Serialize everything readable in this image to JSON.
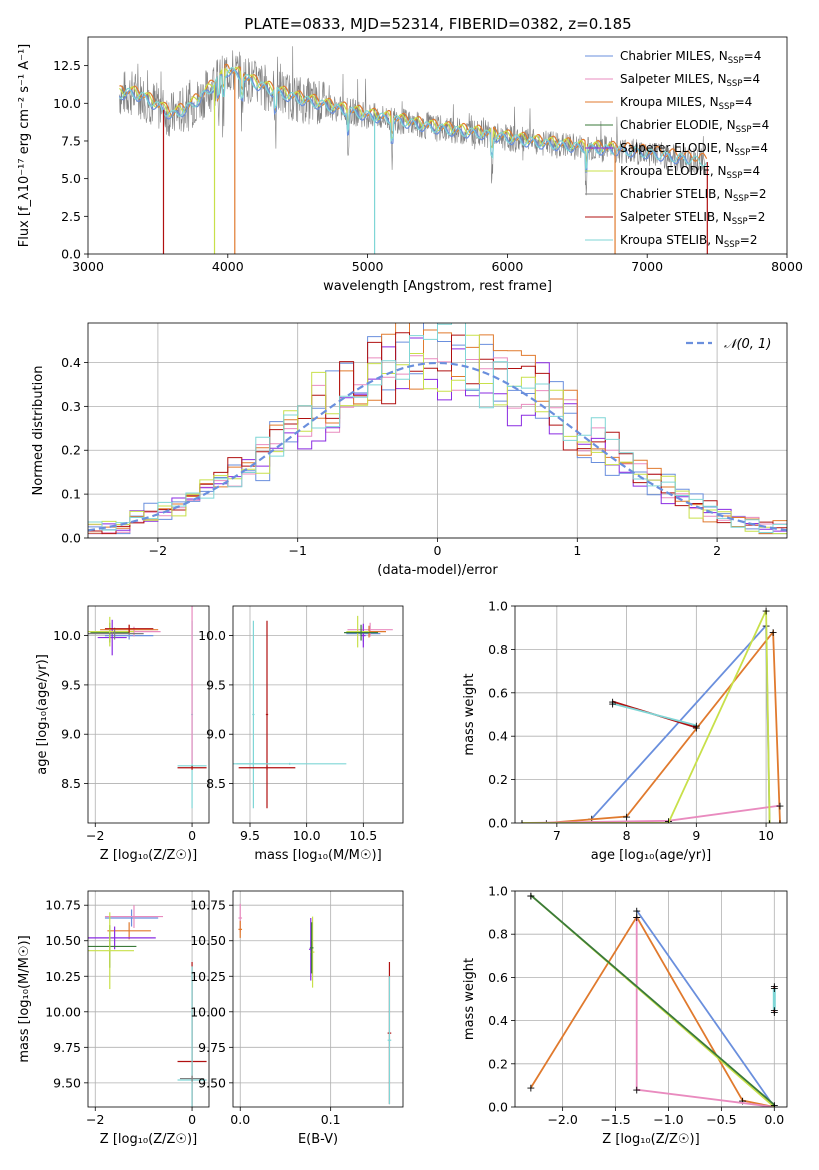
{
  "figure": {
    "title": "PLATE=0833, MJD=52314, FIBERID=0382, z=0.185"
  },
  "colors": {
    "chabrier_miles": "#6a8fdd",
    "salpeter_miles": "#e98bbf",
    "kroupa_miles": "#e07a2e",
    "chabrier_elodie": "#3a7a3a",
    "salpeter_elodie": "#8a2be2",
    "kroupa_elodie": "#c8e04a",
    "chabrier_stelib": "#808080",
    "salpeter_stelib": "#b01010",
    "kroupa_stelib": "#7fd6d6"
  },
  "chart_data": [
    {
      "id": "spectrum",
      "type": "line",
      "xlabel": "wavelength [Angstrom, rest frame]",
      "ylabel": "Flux [f_λ10⁻¹⁷ erg cm⁻² s⁻¹ A⁻¹]",
      "xlim": [
        3000,
        8000
      ],
      "ylim": [
        0,
        14.4
      ],
      "xticks": [
        "3000",
        "4000",
        "5000",
        "6000",
        "7000",
        "8000"
      ],
      "yticks": [
        "0.0",
        "2.5",
        "5.0",
        "7.5",
        "10.0",
        "12.5"
      ],
      "legend": "top-right",
      "legend_entries": [
        "Chabrier MILES, N_SSP=4",
        "Salpeter MILES, N_SSP=4",
        "Kroupa MILES, N_SSP=4",
        "Chabrier ELODIE, N_SSP=4",
        "Salpeter ELODIE, N_SSP=4",
        "Kroupa ELODIE, N_SSP=4",
        "Chabrier STELIB, N_SSP=2",
        "Salpeter STELIB, N_SSP=2",
        "Kroupa STELIB, N_SSP=2"
      ],
      "continuum": {
        "x": [
          3220,
          3300,
          3400,
          3500,
          3600,
          3700,
          3800,
          3900,
          4000,
          4100,
          4200,
          4300,
          4400,
          4500,
          4600,
          4800,
          5000,
          5200,
          5400,
          5600,
          5800,
          6000,
          6200,
          6400,
          6600,
          6800,
          7000,
          7200,
          7420
        ],
        "y": [
          10.6,
          10.7,
          10.4,
          9.8,
          9.2,
          9.6,
          10.3,
          11.2,
          12.2,
          11.8,
          11.3,
          10.9,
          10.6,
          10.3,
          10.1,
          9.6,
          9.2,
          8.9,
          8.5,
          8.2,
          8.0,
          7.7,
          7.4,
          7.2,
          7.0,
          6.9,
          6.7,
          6.4,
          6.1
        ]
      },
      "model_drops": [
        3540,
        3905,
        4050,
        5050,
        6770,
        7430
      ]
    },
    {
      "id": "residuals",
      "type": "line",
      "xlabel": "(data-model)/error",
      "ylabel": "Normed distribution",
      "xlim": [
        -2.5,
        2.5
      ],
      "ylim": [
        0,
        0.49
      ],
      "xticks": [
        "−2",
        "−1",
        "0",
        "1",
        "2"
      ],
      "yticks": [
        "0.0",
        "0.1",
        "0.2",
        "0.3",
        "0.4"
      ],
      "legend": "top-right",
      "legend_entries": [
        "𝒩(0, 1)"
      ],
      "bin_width": 0.1
    },
    {
      "id": "age_vs_Z",
      "type": "scatter",
      "xlabel": "Z [log₁₀(Z/Z☉)]",
      "ylabel": "age  [log₁₀(age/yr)]",
      "xlim": [
        -2.15,
        0.35
      ],
      "ylim": [
        8.1,
        10.3
      ],
      "xticks": [
        "−2",
        "0"
      ],
      "yticks": [
        "8.5",
        "9.0",
        "9.5",
        "10.0"
      ]
    },
    {
      "id": "age_vs_mass",
      "type": "scatter",
      "xlabel": "mass [log₁₀(M/M☉)]",
      "ylabel": "",
      "xlim": [
        9.35,
        10.85
      ],
      "ylim": [
        8.1,
        10.3
      ],
      "xticks": [
        "9.5",
        "10.0",
        "10.5"
      ],
      "yticks": [
        "8.5",
        "9.0",
        "9.5",
        "10.0"
      ]
    },
    {
      "id": "weight_vs_age",
      "type": "line",
      "xlabel": "age  [log₁₀(age/yr)]",
      "ylabel": "mass weight",
      "xlim": [
        6.4,
        10.3
      ],
      "ylim": [
        0,
        1.0
      ],
      "xticks": [
        "7",
        "8",
        "9",
        "10"
      ],
      "yticks": [
        "0.0",
        "0.2",
        "0.4",
        "0.6",
        "0.8",
        "1.0"
      ]
    },
    {
      "id": "mass_vs_Z",
      "type": "scatter",
      "xlabel": "Z [log₁₀(Z/Z☉)]",
      "ylabel": "mass [log₁₀(M/M☉)]",
      "xlim": [
        -2.15,
        0.35
      ],
      "ylim": [
        9.33,
        10.85
      ],
      "xticks": [
        "−2",
        "0"
      ],
      "yticks": [
        "9.50",
        "9.75",
        "10.00",
        "10.25",
        "10.50",
        "10.75"
      ]
    },
    {
      "id": "mass_vs_ebv",
      "type": "scatter",
      "xlabel": "E(B-V)",
      "ylabel": "",
      "xlim": [
        -0.008,
        0.18
      ],
      "ylim": [
        9.33,
        10.85
      ],
      "xticks": [
        "0.0",
        "0.1"
      ],
      "yticks": [
        "9.50",
        "9.75",
        "10.00",
        "10.25",
        "10.50",
        "10.75"
      ]
    },
    {
      "id": "weight_vs_Z",
      "type": "line",
      "xlabel": "Z [log₁₀(Z/Z☉)]",
      "ylabel": "mass weight",
      "xlim": [
        -2.45,
        0.12
      ],
      "ylim": [
        0,
        1.0
      ],
      "xticks": [
        "−2.0",
        "−1.5",
        "−1.0",
        "−0.5",
        "0.0"
      ],
      "yticks": [
        "0.0",
        "0.2",
        "0.4",
        "0.6",
        "0.8",
        "1.0"
      ]
    }
  ]
}
